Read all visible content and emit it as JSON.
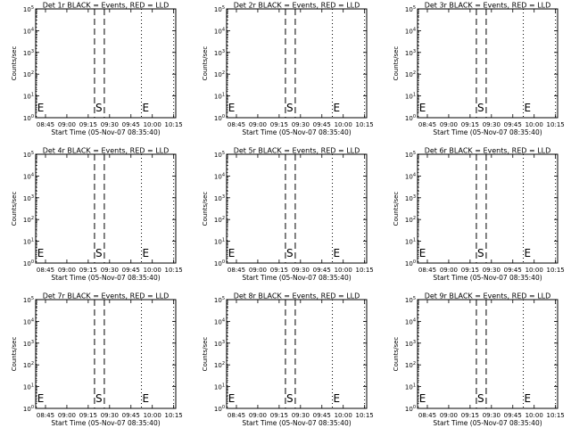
{
  "page": {
    "background": "#ffffff",
    "axis_color": "#000000",
    "event_series_color": "#000000",
    "lld_series_color": "#ff0000"
  },
  "chart_data": [
    {
      "type": "line",
      "title": "Det 1r BLACK = Events, RED = LLD",
      "xlabel": "Start Time (05-Nov-07 08:35:40)",
      "ylabel": "Counts/sec",
      "x_ticks": [
        "08:45",
        "09:00",
        "09:15",
        "09:30",
        "09:45",
        "10:00",
        "10:15"
      ],
      "y_ticks": [
        {
          "base": "10",
          "exp": "0"
        },
        {
          "base": "10",
          "exp": "1"
        },
        {
          "base": "10",
          "exp": "2"
        },
        {
          "base": "10",
          "exp": "3"
        },
        {
          "base": "10",
          "exp": "4"
        },
        {
          "base": "10",
          "exp": "5"
        }
      ],
      "y_scale": "log",
      "ylim": [
        1,
        100000
      ],
      "series": [],
      "markers": [
        {
          "label": "E",
          "style": "dotted"
        },
        {
          "label": "S",
          "style": "dashed"
        },
        {
          "label": "",
          "style": "dashed"
        },
        {
          "label": "E",
          "style": "dotted"
        },
        {
          "label": "",
          "style": "dotted"
        }
      ]
    },
    {
      "type": "line",
      "title": "Det 2r BLACK = Events, RED = LLD",
      "xlabel": "Start Time (05-Nov-07 08:35:40)",
      "ylabel": "Counts/sec",
      "x_ticks": [
        "08:45",
        "09:00",
        "09:15",
        "09:30",
        "09:45",
        "10:00",
        "10:15"
      ],
      "y_ticks": [
        {
          "base": "10",
          "exp": "0"
        },
        {
          "base": "10",
          "exp": "1"
        },
        {
          "base": "10",
          "exp": "2"
        },
        {
          "base": "10",
          "exp": "3"
        },
        {
          "base": "10",
          "exp": "4"
        },
        {
          "base": "10",
          "exp": "5"
        }
      ],
      "y_scale": "log",
      "ylim": [
        1,
        100000
      ],
      "series": [],
      "markers": [
        {
          "label": "E",
          "style": "dotted"
        },
        {
          "label": "S",
          "style": "dashed"
        },
        {
          "label": "",
          "style": "dashed"
        },
        {
          "label": "E",
          "style": "dotted"
        },
        {
          "label": "",
          "style": "dotted"
        }
      ]
    },
    {
      "type": "line",
      "title": "Det 3r BLACK = Events, RED = LLD",
      "xlabel": "Start Time (05-Nov-07 08:35:40)",
      "ylabel": "Counts/sec",
      "x_ticks": [
        "08:45",
        "09:00",
        "09:15",
        "09:30",
        "09:45",
        "10:00",
        "10:15"
      ],
      "y_ticks": [
        {
          "base": "10",
          "exp": "0"
        },
        {
          "base": "10",
          "exp": "1"
        },
        {
          "base": "10",
          "exp": "2"
        },
        {
          "base": "10",
          "exp": "3"
        },
        {
          "base": "10",
          "exp": "4"
        },
        {
          "base": "10",
          "exp": "5"
        }
      ],
      "y_scale": "log",
      "ylim": [
        1,
        100000
      ],
      "series": [],
      "markers": [
        {
          "label": "E",
          "style": "dotted"
        },
        {
          "label": "S",
          "style": "dashed"
        },
        {
          "label": "",
          "style": "dashed"
        },
        {
          "label": "E",
          "style": "dotted"
        },
        {
          "label": "",
          "style": "dotted"
        }
      ]
    },
    {
      "type": "line",
      "title": "Det 4r BLACK = Events, RED = LLD",
      "xlabel": "Start Time (05-Nov-07 08:35:40)",
      "ylabel": "Counts/sec",
      "x_ticks": [
        "08:45",
        "09:00",
        "09:15",
        "09:30",
        "09:45",
        "10:00",
        "10:15"
      ],
      "y_ticks": [
        {
          "base": "10",
          "exp": "0"
        },
        {
          "base": "10",
          "exp": "1"
        },
        {
          "base": "10",
          "exp": "2"
        },
        {
          "base": "10",
          "exp": "3"
        },
        {
          "base": "10",
          "exp": "4"
        },
        {
          "base": "10",
          "exp": "5"
        }
      ],
      "y_scale": "log",
      "ylim": [
        1,
        100000
      ],
      "series": [],
      "markers": [
        {
          "label": "E",
          "style": "dotted"
        },
        {
          "label": "S",
          "style": "dashed"
        },
        {
          "label": "",
          "style": "dashed"
        },
        {
          "label": "E",
          "style": "dotted"
        },
        {
          "label": "",
          "style": "dotted"
        }
      ]
    },
    {
      "type": "line",
      "title": "Det 5r BLACK = Events, RED = LLD",
      "xlabel": "Start Time (05-Nov-07 08:35:40)",
      "ylabel": "Counts/sec",
      "x_ticks": [
        "08:45",
        "09:00",
        "09:15",
        "09:30",
        "09:45",
        "10:00",
        "10:15"
      ],
      "y_ticks": [
        {
          "base": "10",
          "exp": "0"
        },
        {
          "base": "10",
          "exp": "1"
        },
        {
          "base": "10",
          "exp": "2"
        },
        {
          "base": "10",
          "exp": "3"
        },
        {
          "base": "10",
          "exp": "4"
        },
        {
          "base": "10",
          "exp": "5"
        }
      ],
      "y_scale": "log",
      "ylim": [
        1,
        100000
      ],
      "series": [],
      "markers": [
        {
          "label": "E",
          "style": "dotted"
        },
        {
          "label": "S",
          "style": "dashed"
        },
        {
          "label": "",
          "style": "dashed"
        },
        {
          "label": "E",
          "style": "dotted"
        },
        {
          "label": "",
          "style": "dotted"
        }
      ]
    },
    {
      "type": "line",
      "title": "Det 6r BLACK = Events, RED = LLD",
      "xlabel": "Start Time (05-Nov-07 08:35:40)",
      "ylabel": "Counts/sec",
      "x_ticks": [
        "08:45",
        "09:00",
        "09:15",
        "09:30",
        "09:45",
        "10:00",
        "10:15"
      ],
      "y_ticks": [
        {
          "base": "10",
          "exp": "0"
        },
        {
          "base": "10",
          "exp": "1"
        },
        {
          "base": "10",
          "exp": "2"
        },
        {
          "base": "10",
          "exp": "3"
        },
        {
          "base": "10",
          "exp": "4"
        },
        {
          "base": "10",
          "exp": "5"
        }
      ],
      "y_scale": "log",
      "ylim": [
        1,
        100000
      ],
      "series": [],
      "markers": [
        {
          "label": "E",
          "style": "dotted"
        },
        {
          "label": "S",
          "style": "dashed"
        },
        {
          "label": "",
          "style": "dashed"
        },
        {
          "label": "E",
          "style": "dotted"
        },
        {
          "label": "",
          "style": "dotted"
        }
      ]
    },
    {
      "type": "line",
      "title": "Det 7r BLACK = Events, RED = LLD",
      "xlabel": "Start Time (05-Nov-07 08:35:40)",
      "ylabel": "Counts/sec",
      "x_ticks": [
        "08:45",
        "09:00",
        "09:15",
        "09:30",
        "09:45",
        "10:00",
        "10:15"
      ],
      "y_ticks": [
        {
          "base": "10",
          "exp": "0"
        },
        {
          "base": "10",
          "exp": "1"
        },
        {
          "base": "10",
          "exp": "2"
        },
        {
          "base": "10",
          "exp": "3"
        },
        {
          "base": "10",
          "exp": "4"
        },
        {
          "base": "10",
          "exp": "5"
        }
      ],
      "y_scale": "log",
      "ylim": [
        1,
        100000
      ],
      "series": [],
      "markers": [
        {
          "label": "E",
          "style": "dotted"
        },
        {
          "label": "S",
          "style": "dashed"
        },
        {
          "label": "",
          "style": "dashed"
        },
        {
          "label": "E",
          "style": "dotted"
        },
        {
          "label": "",
          "style": "dotted"
        }
      ]
    },
    {
      "type": "line",
      "title": "Det 8r BLACK = Events, RED = LLD",
      "xlabel": "Start Time (05-Nov-07 08:35:40)",
      "ylabel": "Counts/sec",
      "x_ticks": [
        "08:45",
        "09:00",
        "09:15",
        "09:30",
        "09:45",
        "10:00",
        "10:15"
      ],
      "y_ticks": [
        {
          "base": "10",
          "exp": "0"
        },
        {
          "base": "10",
          "exp": "1"
        },
        {
          "base": "10",
          "exp": "2"
        },
        {
          "base": "10",
          "exp": "3"
        },
        {
          "base": "10",
          "exp": "4"
        },
        {
          "base": "10",
          "exp": "5"
        }
      ],
      "y_scale": "log",
      "ylim": [
        1,
        100000
      ],
      "series": [],
      "markers": [
        {
          "label": "E",
          "style": "dotted"
        },
        {
          "label": "S",
          "style": "dashed"
        },
        {
          "label": "",
          "style": "dashed"
        },
        {
          "label": "E",
          "style": "dotted"
        },
        {
          "label": "",
          "style": "dotted"
        }
      ]
    },
    {
      "type": "line",
      "title": "Det 9r BLACK = Events, RED = LLD",
      "xlabel": "Start Time (05-Nov-07 08:35:40)",
      "ylabel": "Counts/sec",
      "x_ticks": [
        "08:45",
        "09:00",
        "09:15",
        "09:30",
        "09:45",
        "10:00",
        "10:15"
      ],
      "y_ticks": [
        {
          "base": "10",
          "exp": "0"
        },
        {
          "base": "10",
          "exp": "1"
        },
        {
          "base": "10",
          "exp": "2"
        },
        {
          "base": "10",
          "exp": "3"
        },
        {
          "base": "10",
          "exp": "4"
        },
        {
          "base": "10",
          "exp": "5"
        }
      ],
      "y_scale": "log",
      "ylim": [
        1,
        100000
      ],
      "series": [],
      "markers": [
        {
          "label": "E",
          "style": "dotted"
        },
        {
          "label": "S",
          "style": "dashed"
        },
        {
          "label": "",
          "style": "dashed"
        },
        {
          "label": "E",
          "style": "dotted"
        },
        {
          "label": "",
          "style": "dotted"
        }
      ]
    }
  ]
}
